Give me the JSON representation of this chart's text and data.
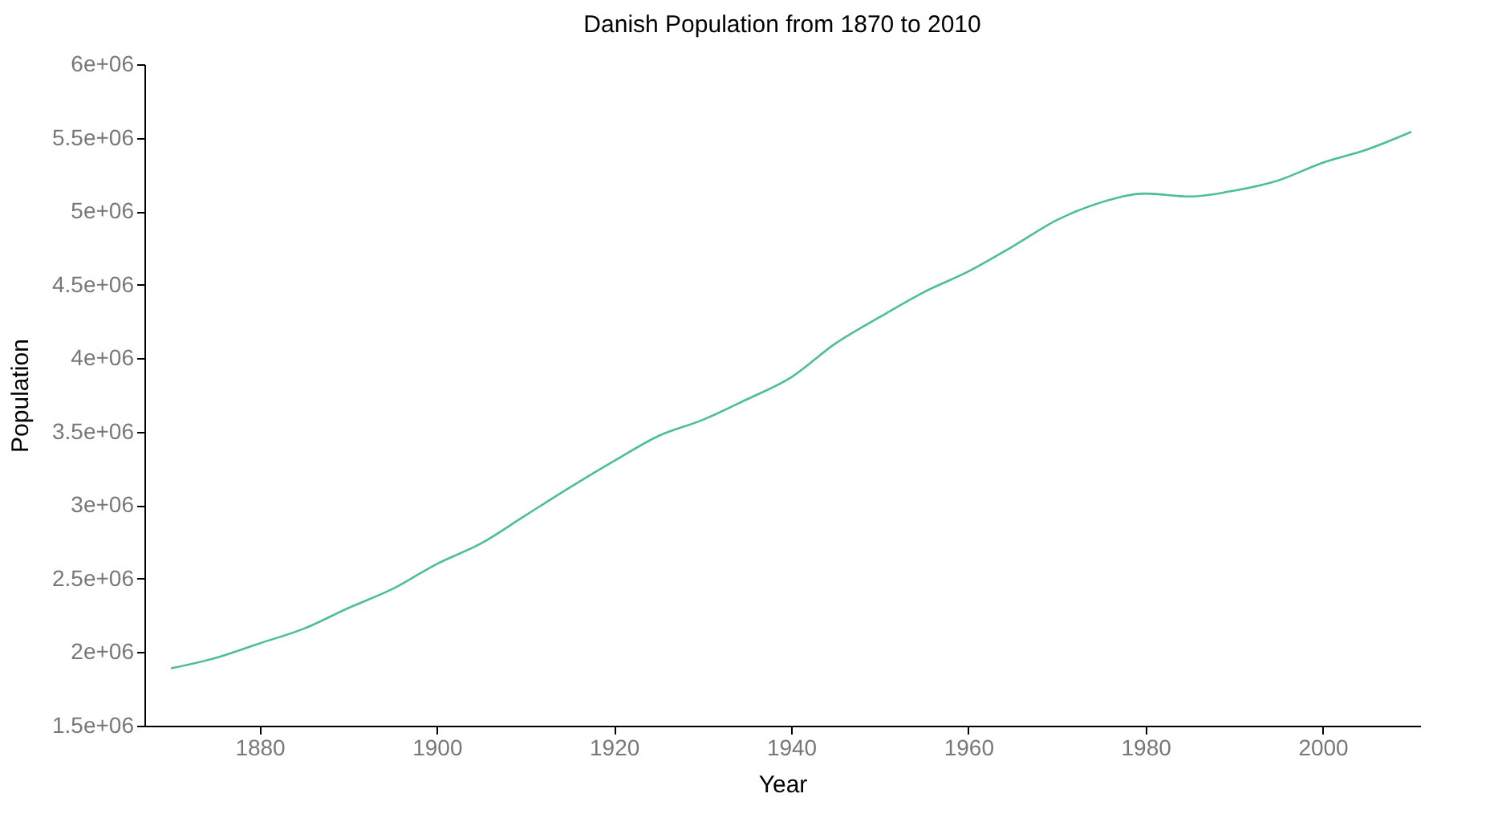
{
  "chart_data": {
    "type": "line",
    "title": "Danish Population from 1870 to 2010",
    "xlabel": "Year",
    "ylabel": "Population",
    "x": [
      1870,
      1875,
      1880,
      1885,
      1890,
      1895,
      1900,
      1905,
      1910,
      1915,
      1920,
      1925,
      1930,
      1935,
      1940,
      1945,
      1950,
      1955,
      1960,
      1965,
      1970,
      1975,
      1980,
      1985,
      1990,
      1995,
      2000,
      2005,
      2010
    ],
    "series": [
      {
        "color": "#4dbf94",
        "values": [
          1890000,
          1960000,
          2060000,
          2160000,
          2300000,
          2430000,
          2600000,
          2740000,
          2930000,
          3120000,
          3300000,
          3470000,
          3580000,
          3720000,
          3870000,
          4100000,
          4280000,
          4450000,
          4590000,
          4760000,
          4940000,
          5060000,
          5120000,
          5100000,
          5140000,
          5210000,
          5330000,
          5420000,
          5540000
        ]
      }
    ],
    "xlim": [
      1867,
      2011
    ],
    "xticks": [
      1880,
      1900,
      1920,
      1940,
      1960,
      1980,
      2000
    ],
    "ylim": [
      1500000,
      6000000
    ],
    "yticks": [
      {
        "value": 1500000,
        "label": "1.5e+06"
      },
      {
        "value": 2000000,
        "label": "2e+06"
      },
      {
        "value": 2500000,
        "label": "2.5e+06"
      },
      {
        "value": 3000000,
        "label": "3e+06"
      },
      {
        "value": 3500000,
        "label": "3.5e+06"
      },
      {
        "value": 4000000,
        "label": "4e+06"
      },
      {
        "value": 4500000,
        "label": "4.5e+06"
      },
      {
        "value": 5000000,
        "label": "5e+06"
      },
      {
        "value": 5500000,
        "label": "5.5e+06"
      },
      {
        "value": 6000000,
        "label": "6e+06"
      }
    ],
    "grid": false,
    "marker": "none",
    "line_style": "solid"
  }
}
